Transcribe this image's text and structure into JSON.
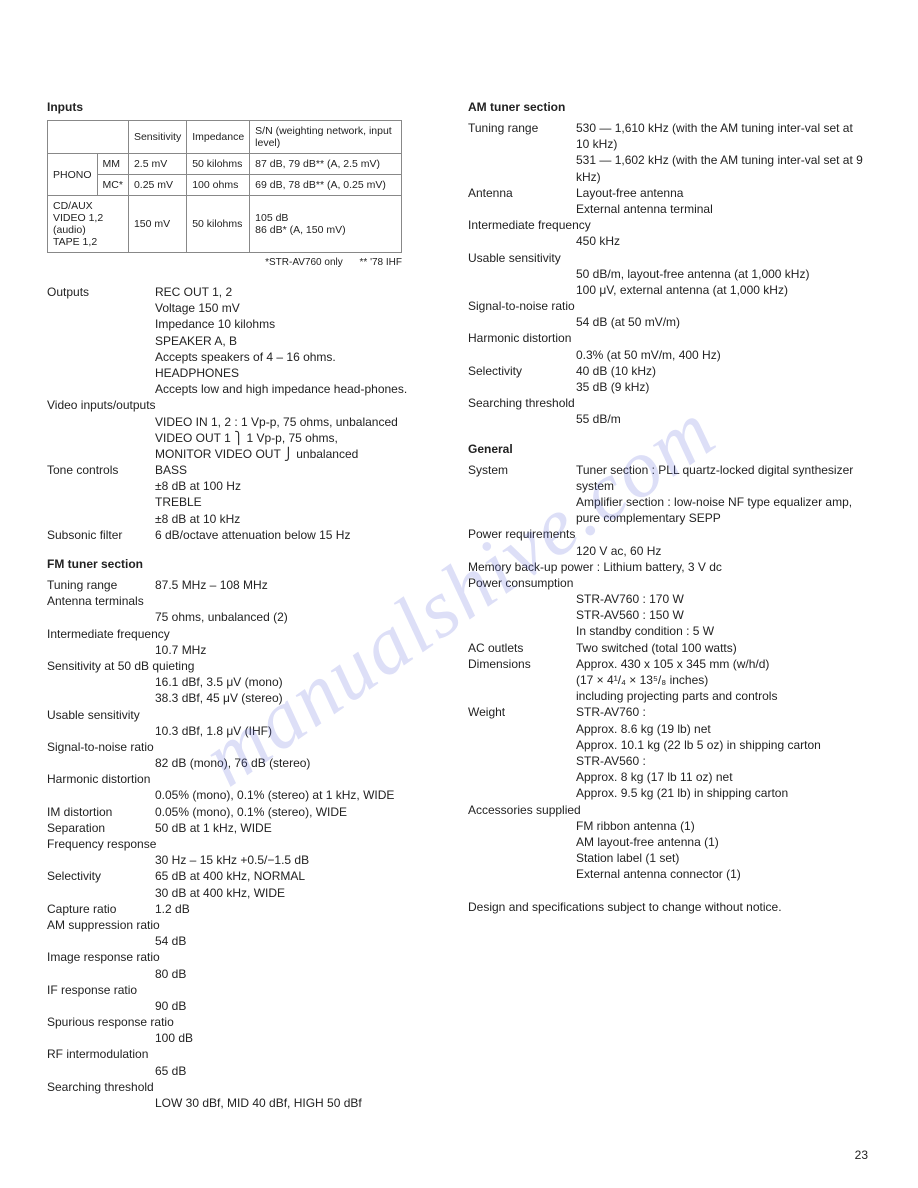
{
  "watermark": "manualshive.com",
  "page_number": "23",
  "left": {
    "inputs_heading": "Inputs",
    "table": {
      "headers": {
        "sensitivity": "Sensitivity",
        "impedance": "Impedance",
        "sn": "S/N (weighting network, input level)"
      },
      "phono_row": "PHONO",
      "rows": [
        {
          "a": "MM",
          "sens": "2.5 mV",
          "imp": "50 kilohms",
          "sn": "87 dB, 79 dB** (A, 2.5 mV)"
        },
        {
          "a": "MC*",
          "sens": "0.25 mV",
          "imp": "100 ohms",
          "sn": "69 dB, 78 dB** (A, 0.25 mV)"
        }
      ],
      "merged_row": {
        "label": "CD/AUX\nVIDEO 1,2\n(audio)\nTAPE 1,2",
        "sens": "150 mV",
        "imp": "50 kilohms",
        "sn": "105 dB\n86 dB* (A, 150 mV)"
      }
    },
    "table_note_left": "*STR-AV760 only",
    "table_note_right": "** '78 IHF",
    "blocks": [
      {
        "label": "Outputs",
        "lines": [
          "REC OUT 1, 2",
          "Voltage 150 mV",
          "Impedance 10 kilohms",
          "SPEAKER A, B",
          "Accepts speakers of 4 – 16 ohms.",
          "HEADPHONES",
          "Accepts low and high impedance head-phones."
        ]
      },
      {
        "label": "Video inputs/outputs",
        "lines": [
          "VIDEO IN 1, 2 :  1 Vp-p, 75 ohms, unbalanced",
          "VIDEO OUT 1        ⎫ 1 Vp-p, 75 ohms,",
          "MONITOR VIDEO OUT ⎭ unbalanced"
        ]
      },
      {
        "label": "Tone controls",
        "lines": [
          "BASS",
          "±8 dB at 100 Hz",
          "TREBLE",
          "±8 dB at 10 kHz"
        ]
      },
      {
        "label": "Subsonic filter",
        "lines": [
          "6 dB/octave attenuation below 15 Hz"
        ]
      }
    ],
    "fm_heading": "FM tuner section",
    "fm": [
      {
        "label": "Tuning range",
        "lines": [
          "87.5 MHz – 108 MHz"
        ]
      },
      {
        "label": "Antenna terminals",
        "lines": [
          "75 ohms, unbalanced (2)"
        ]
      },
      {
        "label": "Intermediate frequency",
        "lines": [
          "10.7 MHz"
        ]
      },
      {
        "label": "Sensitivity at 50 dB quieting",
        "lines": [
          "16.1 dBf, 3.5 μV (mono)",
          "38.3 dBf, 45 μV (stereo)"
        ]
      },
      {
        "label": "Usable sensitivity",
        "lines": [
          "10.3 dBf, 1.8 μV (IHF)"
        ]
      },
      {
        "label": "Signal-to-noise ratio",
        "lines": [
          "82 dB (mono), 76 dB (stereo)"
        ]
      },
      {
        "label": "Harmonic distortion",
        "lines": [
          "0.05% (mono), 0.1% (stereo) at 1 kHz, WIDE"
        ]
      },
      {
        "label": "IM distortion",
        "lines": [
          "0.05% (mono), 0.1% (stereo), WIDE"
        ]
      },
      {
        "label": "Separation",
        "lines": [
          "50 dB at 1 kHz, WIDE"
        ]
      },
      {
        "label": "Frequency response",
        "lines": [
          "30 Hz – 15 kHz  +0.5/−1.5 dB"
        ]
      },
      {
        "label": "Selectivity",
        "lines": [
          "65 dB at 400 kHz, NORMAL",
          "30 dB at 400 kHz, WIDE"
        ]
      },
      {
        "label": "Capture ratio",
        "lines": [
          "1.2 dB"
        ]
      },
      {
        "label": "AM suppression ratio",
        "lines": [
          "54 dB"
        ]
      },
      {
        "label": "Image response ratio",
        "lines": [
          "80 dB"
        ]
      },
      {
        "label": "IF response ratio",
        "lines": [
          "90 dB"
        ]
      },
      {
        "label": "Spurious response ratio",
        "lines": [
          "100 dB"
        ]
      },
      {
        "label": "RF intermodulation",
        "lines": [
          "65 dB"
        ]
      },
      {
        "label": "Searching threshold",
        "lines": [
          "LOW 30 dBf, MID 40 dBf, HIGH 50 dBf"
        ]
      }
    ]
  },
  "right": {
    "am_heading": "AM tuner section",
    "am": [
      {
        "label": "Tuning range",
        "lines": [
          "530 — 1,610 kHz (with the AM tuning inter-val set at 10 kHz)",
          "531 — 1,602 kHz (with the AM tuning inter-val set at 9 kHz)"
        ]
      },
      {
        "label": "Antenna",
        "lines": [
          "Layout-free antenna",
          "External antenna terminal"
        ]
      },
      {
        "label": "Intermediate frequency",
        "lines": [
          "450 kHz"
        ]
      },
      {
        "label": "Usable sensitivity",
        "lines": [
          "50 dB/m, layout-free antenna (at 1,000 kHz)",
          "100 μV, external antenna (at 1,000 kHz)"
        ]
      },
      {
        "label": "Signal-to-noise ratio",
        "lines": [
          "54 dB (at 50 mV/m)"
        ]
      },
      {
        "label": "Harmonic distortion",
        "lines": [
          "0.3% (at 50 mV/m, 400 Hz)"
        ]
      },
      {
        "label": "Selectivity",
        "lines": [
          "40 dB (10 kHz)",
          "35 dB (9 kHz)"
        ]
      },
      {
        "label": "Searching threshold",
        "lines": [
          "55 dB/m"
        ]
      }
    ],
    "gen_heading": "General",
    "gen": [
      {
        "label": "System",
        "lines": [
          "Tuner section :  PLL quartz-locked digital synthesizer system",
          "Amplifier section :  low-noise NF type equalizer amp, pure complementary SEPP"
        ]
      },
      {
        "label": "Power requirements",
        "lines": [
          "120 V ac, 60 Hz"
        ]
      },
      {
        "label": "Memory back-up power :  Lithium battery, 3 V dc",
        "lines": []
      },
      {
        "label": "Power consumption",
        "lines": [
          "STR-AV760 :   170 W",
          "STR-AV560 :   150 W",
          "In standby condition :   5 W"
        ]
      },
      {
        "label": "AC outlets",
        "lines": [
          "Two switched (total 100 watts)"
        ]
      },
      {
        "label": "Dimensions",
        "lines": [
          "Approx. 430 x 105 x 345 mm (w/h/d)",
          "   (17 × 4¹/₄ × 13⁵/₈  inches)",
          "including projecting parts and controls"
        ]
      },
      {
        "label": "Weight",
        "lines": [
          "STR-AV760 :",
          "Approx. 8.6 kg (19 lb) net",
          "Approx. 10.1 kg (22 lb 5 oz) in shipping carton",
          "STR-AV560 :",
          "Approx. 8 kg (17 lb 11 oz) net",
          "Approx. 9.5 kg (21 lb) in shipping carton"
        ]
      },
      {
        "label": "Accessories supplied",
        "lines": [
          "FM ribbon antenna (1)",
          "AM layout-free antenna (1)",
          "Station label (1 set)",
          "External antenna connector (1)"
        ]
      }
    ],
    "footer": "Design and specifications subject to change without notice."
  }
}
